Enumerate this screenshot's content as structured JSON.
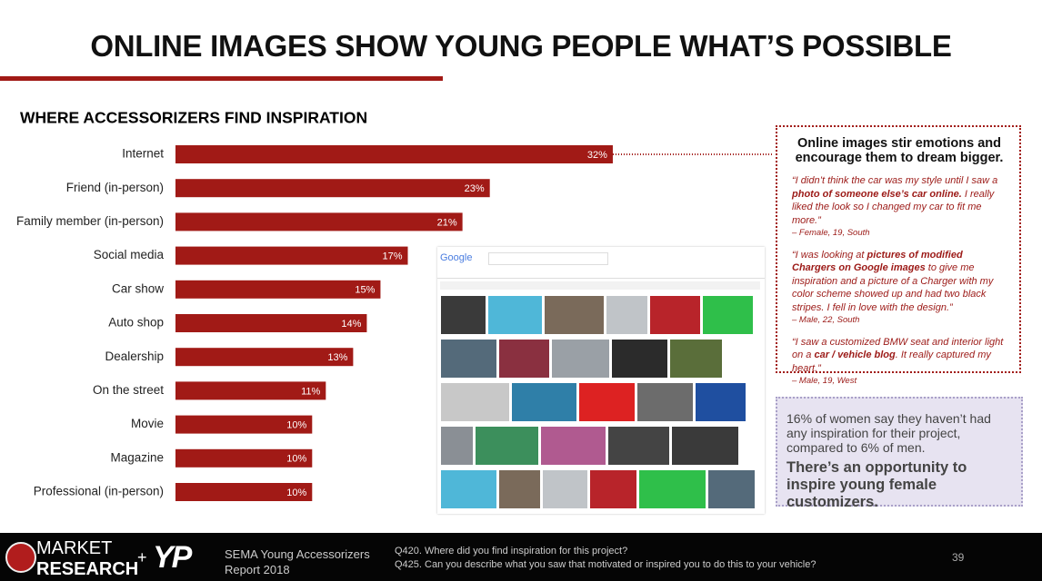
{
  "title": "ONLINE IMAGES SHOW YOUNG PEOPLE WHAT’S POSSIBLE",
  "chart_data": {
    "type": "bar",
    "orientation": "horizontal",
    "title": "WHERE ACCESSORIZERS FIND INSPIRATION",
    "categories": [
      "Internet",
      "Friend (in-person)",
      "Family member (in-person)",
      "Social media",
      "Car show",
      "Auto shop",
      "Dealership",
      "On the street",
      "Movie",
      "Magazine",
      "Professional (in-person)"
    ],
    "values": [
      32,
      23,
      21,
      17,
      15,
      14,
      13,
      11,
      10,
      10,
      10
    ],
    "value_labels": [
      "32%",
      "23%",
      "21%",
      "17%",
      "15%",
      "14%",
      "13%",
      "11%",
      "10%",
      "10%",
      "10%"
    ],
    "color": "#a11a16"
  },
  "callout": {
    "heading": "Online images stir emotions and encourage them to dream bigger.",
    "quotes": [
      {
        "before": "“I didn’t think the car was my style until I saw a ",
        "emphasis": "photo of someone else’s car online.",
        "after": " I really liked the look so I changed my car to fit me more.”",
        "attribution": "– Female, 19, South"
      },
      {
        "before": "“I was looking at ",
        "emphasis": "pictures of modified Chargers on Google images",
        "after": " to give me inspiration and a picture of a Charger with my color scheme showed up and had two black stripes. I fell in love with the design.”",
        "attribution": "– Male, 22, South"
      },
      {
        "before": "“I saw a customized BMW seat and interior light on a ",
        "emphasis": "car / vehicle blog",
        "after": ". It really captured my heart.”",
        "attribution": "– Male, 19, West"
      }
    ]
  },
  "stat": {
    "text": "16% of women say they haven’t had any inspiration for their project, compared to 6% of men.",
    "highlight": "There’s an opportunity to inspire young female customizers."
  },
  "search_panel": {
    "logo": "Google"
  },
  "footer": {
    "logo_top": "MARKET",
    "logo_bottom": "RESEARCH",
    "plus": "+",
    "partner": "YP",
    "report": "SEMA Young Accessorizers Report 2018",
    "questions": [
      "Q420. Where did you find inspiration for this project?",
      "Q425. Can you describe what you saw that motivated or inspired you to do this to your vehicle?"
    ],
    "page": "39"
  }
}
